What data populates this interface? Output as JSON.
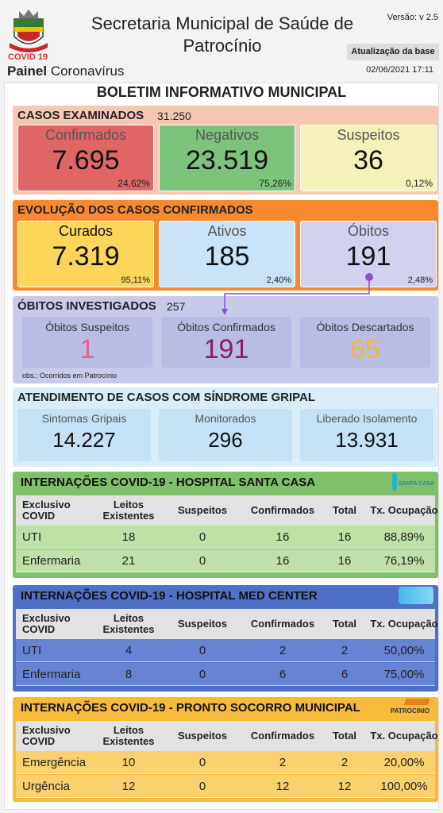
{
  "header": {
    "title": "Secretaria Municipal de Saúde de Patrocínio",
    "version": "Versão: v 2.5",
    "covid_tag": "COVID 19",
    "panel_bold": "Painel",
    "panel_rest": "Coronavírus",
    "update_label": "Atualização da base",
    "update_date": "02/06/2021 17:11"
  },
  "bulletin_title": "BOLETIM INFORMATIVO MUNICIPAL",
  "examined": {
    "title": "CASOS EXAMINADOS",
    "total": "31.250",
    "cards": [
      {
        "label": "Confirmados",
        "value": "7.695",
        "percent": "24,62%"
      },
      {
        "label": "Negativos",
        "value": "23.519",
        "percent": "75,26%"
      },
      {
        "label": "Suspeitos",
        "value": "36",
        "percent": "0,12%"
      }
    ]
  },
  "evolution": {
    "title": "EVOLUÇÃO DOS CASOS CONFIRMADOS",
    "cards": [
      {
        "label": "Curados",
        "value": "7.319",
        "percent": "95,11%"
      },
      {
        "label": "Ativos",
        "value": "185",
        "percent": "2,40%"
      },
      {
        "label": "Óbitos",
        "value": "191",
        "percent": "2,48%"
      }
    ]
  },
  "deaths": {
    "title": "ÓBITOS INVESTIGADOS",
    "total": "257",
    "cards": [
      {
        "label": "Óbitos Suspeitos",
        "value": "1"
      },
      {
        "label": "Óbitos Confirmados",
        "value": "191"
      },
      {
        "label": "Óbitos Descartados",
        "value": "65"
      }
    ],
    "note": "obs.: Ocorridos em Patrocínio"
  },
  "flu": {
    "title": "ATENDIMENTO DE CASOS COM SÍNDROME GRIPAL",
    "cards": [
      {
        "label": "Sintomas Gripais",
        "value": "14.227"
      },
      {
        "label": "Monitorados",
        "value": "296"
      },
      {
        "label": "Liberado Isolamento",
        "value": "13.931"
      }
    ]
  },
  "hospitals": [
    {
      "title": "INTERNAÇÕES COVID-19 - HOSPITAL SANTA CASA",
      "logo_text": "SANTA CASA",
      "columns": [
        "Exclusivo COVID",
        "Leitos Existentes",
        "Suspeitos",
        "Confirmados",
        "Total",
        "Tx. Ocupação"
      ],
      "rows": [
        [
          "UTI",
          "18",
          "0",
          "16",
          "16",
          "88,89%"
        ],
        [
          "Enfermaria",
          "21",
          "0",
          "16",
          "16",
          "76,19%"
        ]
      ]
    },
    {
      "title": "INTERNAÇÕES COVID-19 - HOSPITAL MED CENTER",
      "columns": [
        "Exclusivo COVID",
        "Leitos Existentes",
        "Suspeitos",
        "Confirmados",
        "Total",
        "Tx. Ocupação"
      ],
      "rows": [
        [
          "UTI",
          "4",
          "0",
          "2",
          "2",
          "50,00%"
        ],
        [
          "Enfermaria",
          "8",
          "0",
          "6",
          "6",
          "75,00%"
        ]
      ]
    },
    {
      "title": "INTERNAÇÕES COVID-19 - PRONTO SOCORRO MUNICIPAL",
      "logo_text": "PATROCINIO",
      "columns": [
        "Exclusivo COVID",
        "Leitos Existentes",
        "Suspeitos",
        "Confirmados",
        "Total",
        "Tx. Ocupação"
      ],
      "rows": [
        [
          "Emergência",
          "10",
          "0",
          "2",
          "2",
          "20,00%"
        ],
        [
          "Urgência",
          "12",
          "0",
          "12",
          "12",
          "100,00%"
        ]
      ]
    }
  ]
}
